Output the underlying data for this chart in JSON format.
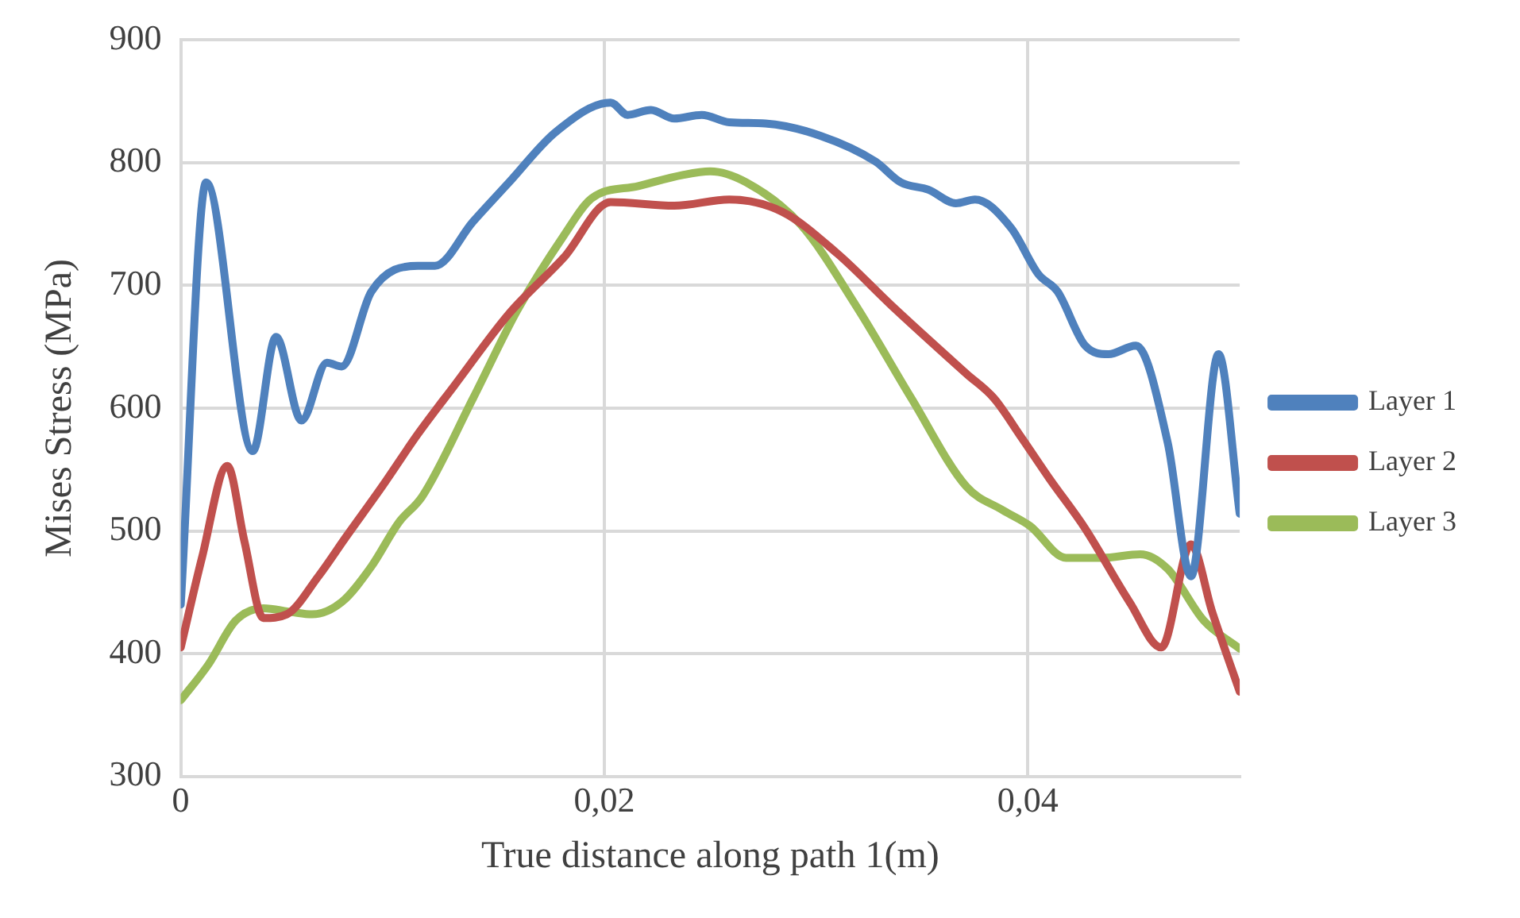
{
  "chart_data": {
    "type": "line",
    "xlabel": "True distance along path 1(m)",
    "ylabel": "Mises Stress (MPa)",
    "xlim": [
      0,
      0.05
    ],
    "xticks": [
      0,
      {
        "value": 0.02,
        "label": "0,02"
      },
      {
        "value": 0.04,
        "label": "0,04"
      }
    ],
    "ylim": [
      300,
      900
    ],
    "yticks": [
      300,
      400,
      500,
      600,
      700,
      800,
      900
    ],
    "grid": true,
    "legend": "right",
    "marker": "none",
    "line_style": "solid",
    "series": [
      {
        "name": "Layer 1",
        "color": "#4f81bd",
        "x": [
          0,
          0.0012,
          0.0034,
          0.0045,
          0.0057,
          0.0069,
          0.0076,
          0.009,
          0.0112,
          0.012,
          0.0138,
          0.0155,
          0.0177,
          0.0203,
          0.0211,
          0.0222,
          0.0233,
          0.0246,
          0.0259,
          0.0276,
          0.0302,
          0.0328,
          0.034,
          0.0353,
          0.0366,
          0.0375,
          0.0392,
          0.0405,
          0.0414,
          0.0427,
          0.0438,
          0.0451,
          0.0466,
          0.0477,
          0.049,
          0.05
        ],
        "values": [
          440,
          784,
          565,
          658,
          590,
          637,
          634,
          695,
          716,
          716,
          752,
          784,
          825,
          849,
          839,
          843,
          836,
          839,
          833,
          832,
          822,
          801,
          784,
          778,
          767,
          770,
          747,
          709,
          695,
          651,
          644,
          651,
          572,
          463,
          644,
          514
        ]
      },
      {
        "name": "Layer 2",
        "color": "#c0504d",
        "x": [
          0,
          0.001,
          0.0022,
          0.003,
          0.0039,
          0.005,
          0.0065,
          0.0078,
          0.0095,
          0.0112,
          0.0129,
          0.0155,
          0.0181,
          0.0203,
          0.0233,
          0.0259,
          0.0284,
          0.031,
          0.0336,
          0.0371,
          0.0384,
          0.0397,
          0.041,
          0.0427,
          0.0448,
          0.0463,
          0.0477,
          0.0487,
          0.05
        ],
        "values": [
          405,
          478,
          553,
          492,
          429,
          432,
          463,
          495,
          536,
          579,
          618,
          677,
          723,
          768,
          765,
          770,
          760,
          726,
          683,
          628,
          608,
          576,
          543,
          502,
          442,
          405,
          489,
          434,
          369
        ]
      },
      {
        "name": "Layer 3",
        "color": "#9bbb59",
        "x": [
          0,
          0.0013,
          0.0026,
          0.0039,
          0.0052,
          0.0062,
          0.0076,
          0.009,
          0.0103,
          0.0114,
          0.0138,
          0.0159,
          0.0181,
          0.0194,
          0.0216,
          0.0237,
          0.025,
          0.0267,
          0.0293,
          0.0319,
          0.0345,
          0.0371,
          0.0388,
          0.0401,
          0.0418,
          0.0435,
          0.0453,
          0.0466,
          0.0483,
          0.05
        ],
        "values": [
          362,
          391,
          427,
          437,
          434,
          432,
          442,
          471,
          507,
          528,
          608,
          680,
          741,
          771,
          781,
          790,
          793,
          784,
          749,
          683,
          608,
          536,
          517,
          504,
          478,
          478,
          481,
          469,
          427,
          404
        ]
      }
    ]
  }
}
